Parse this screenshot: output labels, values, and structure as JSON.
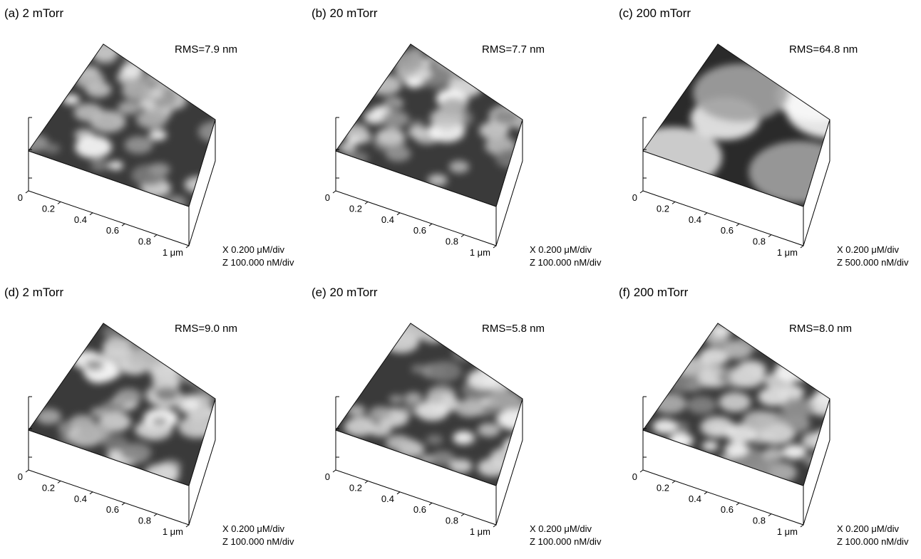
{
  "panels": [
    {
      "label": "(a) 2 mTorr",
      "rms": "RMS=7.9 nm",
      "x_ticks": [
        "0",
        "0.2",
        "0.4",
        "0.6",
        "0.8",
        "1 μm"
      ],
      "x_scale": "X 0.200 μM/div",
      "z_scale": "Z 100.000 nM/div"
    },
    {
      "label": "(b) 20 mTorr",
      "rms": "RMS=7.7 nm",
      "x_ticks": [
        "0",
        "0.2",
        "0.4",
        "0.6",
        "0.8",
        "1 μm"
      ],
      "x_scale": "X 0.200 μM/div",
      "z_scale": "Z 100.000 nM/div"
    },
    {
      "label": "(c) 200 mTorr",
      "rms": "RMS=64.8 nm",
      "x_ticks": [
        "0",
        "0.2",
        "0.4",
        "0.6",
        "0.8",
        "1 μm"
      ],
      "x_scale": "X 0.200 μM/div",
      "z_scale": "Z 500.000 nM/div"
    },
    {
      "label": "(d) 2 mTorr",
      "rms": "RMS=9.0 nm",
      "x_ticks": [
        "0",
        "0.2",
        "0.4",
        "0.6",
        "0.8",
        "1 μm"
      ],
      "x_scale": "X 0.200 μM/div",
      "z_scale": "Z 100.000 nM/div"
    },
    {
      "label": "(e) 20 mTorr",
      "rms": "RMS=5.8 nm",
      "x_ticks": [
        "0",
        "0.2",
        "0.4",
        "0.6",
        "0.8",
        "1 μm"
      ],
      "x_scale": "X 0.200 μM/div",
      "z_scale": "Z 100.000 nM/div"
    },
    {
      "label": "(f) 200 mTorr",
      "rms": "RMS=8.0 nm",
      "x_ticks": [
        "0",
        "0.2",
        "0.4",
        "0.6",
        "0.8",
        "1 μm"
      ],
      "x_scale": "X 0.200 μM/div",
      "z_scale": "Z 100.000 nM/div"
    }
  ]
}
